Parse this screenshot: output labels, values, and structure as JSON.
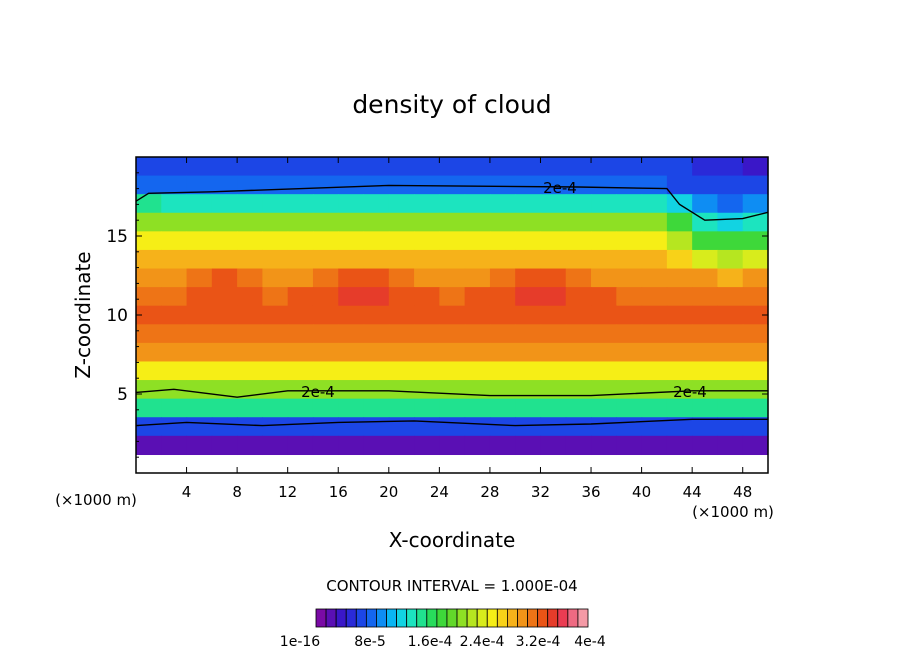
{
  "chart_data": {
    "type": "heatmap",
    "title": "density of cloud",
    "xlabel": "X-coordinate",
    "ylabel": "Z-coordinate",
    "x_unit_left": "(×1000 m)",
    "x_unit_right": "(×1000 m)",
    "xlim": [
      0,
      50
    ],
    "ylim": [
      0,
      20
    ],
    "x_ticks": [
      "4",
      "8",
      "12",
      "16",
      "20",
      "24",
      "28",
      "32",
      "36",
      "40",
      "44",
      "48"
    ],
    "y_ticks": [
      "5",
      "10",
      "15"
    ],
    "contour_interval_text": "CONTOUR INTERVAL = 1.000E-04",
    "contour_labels": [
      "2e-4",
      "2e-4",
      "2e-4"
    ],
    "colorbar_labels": [
      "1e-16",
      "8e-5",
      "1.6e-4",
      "2.4e-4",
      "3.2e-4",
      "4e-4"
    ],
    "colorbar_colors": [
      "#7a0aa5",
      "#5a0fb4",
      "#3a17c8",
      "#2a2ad8",
      "#1c46e6",
      "#1466ef",
      "#0e8df3",
      "#0ab6f3",
      "#12d3e2",
      "#1ce4bf",
      "#20e28f",
      "#28dc5c",
      "#3ed83a",
      "#62d82a",
      "#8ee024",
      "#b6e620",
      "#d8ec1c",
      "#f6ee16",
      "#f8d218",
      "#f6b21a",
      "#f29418",
      "#ee7416",
      "#ea5416",
      "#e63c2a",
      "#ea3c52",
      "#ee6a82",
      "#f49aa6"
    ],
    "z_rows_top_to_bottom": [
      [
        0.6,
        0.6,
        0.6,
        0.6,
        0.6,
        0.6,
        0.6,
        0.6,
        0.6,
        0.6,
        0.6,
        0.6,
        0.6,
        0.6,
        0.6,
        0.6,
        0.6,
        0.6,
        0.6,
        0.6,
        0.6,
        0.6,
        0.5,
        0.5,
        0.4
      ],
      [
        0.8,
        0.8,
        0.8,
        0.8,
        0.8,
        0.8,
        0.8,
        0.8,
        0.8,
        0.8,
        0.8,
        0.8,
        0.8,
        0.8,
        0.8,
        0.8,
        0.8,
        0.8,
        0.8,
        0.8,
        0.8,
        0.7,
        0.6,
        0.6,
        0.6
      ],
      [
        1.5,
        1.4,
        1.4,
        1.4,
        1.4,
        1.4,
        1.4,
        1.4,
        1.4,
        1.4,
        1.4,
        1.4,
        1.4,
        1.4,
        1.4,
        1.4,
        1.4,
        1.4,
        1.4,
        1.4,
        1.4,
        1.2,
        0.9,
        0.8,
        0.9
      ],
      [
        2.2,
        2.1,
        2.1,
        2.1,
        2.1,
        2.1,
        2.1,
        2.1,
        2.1,
        2.1,
        2.1,
        2.1,
        2.1,
        2.1,
        2.1,
        2.1,
        2.1,
        2.1,
        2.1,
        2.1,
        2.1,
        1.8,
        1.4,
        1.3,
        1.4
      ],
      [
        2.6,
        2.6,
        2.6,
        2.6,
        2.6,
        2.6,
        2.6,
        2.6,
        2.6,
        2.6,
        2.6,
        2.6,
        2.6,
        2.6,
        2.6,
        2.6,
        2.6,
        2.6,
        2.6,
        2.6,
        2.6,
        2.3,
        1.9,
        1.8,
        1.9
      ],
      [
        2.9,
        2.9,
        2.9,
        2.9,
        2.9,
        2.9,
        2.9,
        2.9,
        2.9,
        2.9,
        2.9,
        2.9,
        2.9,
        2.9,
        2.9,
        2.9,
        2.9,
        2.9,
        2.9,
        2.9,
        2.9,
        2.8,
        2.4,
        2.3,
        2.4
      ],
      [
        3.1,
        3.1,
        3.2,
        3.3,
        3.2,
        3.1,
        3.1,
        3.2,
        3.3,
        3.3,
        3.2,
        3.1,
        3.1,
        3.1,
        3.2,
        3.3,
        3.3,
        3.2,
        3.1,
        3.1,
        3.1,
        3.1,
        3.0,
        2.9,
        3.0
      ],
      [
        3.2,
        3.2,
        3.3,
        3.4,
        3.3,
        3.2,
        3.3,
        3.4,
        3.5,
        3.5,
        3.4,
        3.3,
        3.2,
        3.3,
        3.4,
        3.5,
        3.5,
        3.4,
        3.3,
        3.2,
        3.2,
        3.2,
        3.2,
        3.2,
        3.2
      ],
      [
        3.3,
        3.3,
        3.3,
        3.3,
        3.3,
        3.3,
        3.3,
        3.3,
        3.3,
        3.3,
        3.3,
        3.3,
        3.3,
        3.3,
        3.3,
        3.3,
        3.3,
        3.3,
        3.3,
        3.3,
        3.3,
        3.3,
        3.3,
        3.3,
        3.3
      ],
      [
        3.2,
        3.2,
        3.2,
        3.2,
        3.2,
        3.2,
        3.2,
        3.2,
        3.2,
        3.2,
        3.2,
        3.2,
        3.2,
        3.2,
        3.2,
        3.2,
        3.2,
        3.2,
        3.2,
        3.2,
        3.2,
        3.2,
        3.2,
        3.2,
        3.2
      ],
      [
        3.0,
        3.0,
        3.0,
        3.0,
        3.0,
        3.0,
        3.0,
        3.0,
        3.0,
        3.0,
        3.0,
        3.0,
        3.0,
        3.0,
        3.0,
        3.0,
        3.0,
        3.0,
        3.0,
        3.0,
        3.0,
        3.0,
        3.0,
        3.0,
        3.0
      ],
      [
        2.6,
        2.6,
        2.6,
        2.6,
        2.6,
        2.6,
        2.6,
        2.6,
        2.6,
        2.6,
        2.6,
        2.6,
        2.6,
        2.6,
        2.6,
        2.6,
        2.6,
        2.6,
        2.6,
        2.6,
        2.6,
        2.6,
        2.6,
        2.6,
        2.6
      ],
      [
        2.1,
        2.1,
        2.1,
        2.1,
        2.1,
        2.1,
        2.1,
        2.1,
        2.1,
        2.1,
        2.1,
        2.1,
        2.1,
        2.1,
        2.1,
        2.1,
        2.1,
        2.1,
        2.1,
        2.1,
        2.1,
        2.1,
        2.1,
        2.1,
        2.1
      ],
      [
        1.5,
        1.5,
        1.5,
        1.5,
        1.5,
        1.5,
        1.5,
        1.5,
        1.5,
        1.5,
        1.5,
        1.5,
        1.5,
        1.5,
        1.5,
        1.5,
        1.5,
        1.5,
        1.5,
        1.5,
        1.5,
        1.5,
        1.5,
        1.5,
        1.5
      ],
      [
        0.7,
        0.7,
        0.7,
        0.7,
        0.7,
        0.7,
        0.7,
        0.7,
        0.7,
        0.7,
        0.7,
        0.7,
        0.7,
        0.7,
        0.7,
        0.7,
        0.7,
        0.7,
        0.7,
        0.7,
        0.7,
        0.7,
        0.7,
        0.7,
        0.7
      ],
      [
        0.2,
        0.2,
        0.2,
        0.2,
        0.2,
        0.2,
        0.2,
        0.2,
        0.2,
        0.2,
        0.2,
        0.2,
        0.2,
        0.2,
        0.2,
        0.2,
        0.2,
        0.2,
        0.2,
        0.2,
        0.2,
        0.2,
        0.2,
        0.2,
        0.2
      ],
      [
        null,
        null,
        null,
        null,
        null,
        null,
        null,
        null,
        null,
        null,
        null,
        null,
        null,
        null,
        null,
        null,
        null,
        null,
        null,
        null,
        null,
        null,
        null,
        null,
        null
      ]
    ],
    "grid": false
  }
}
